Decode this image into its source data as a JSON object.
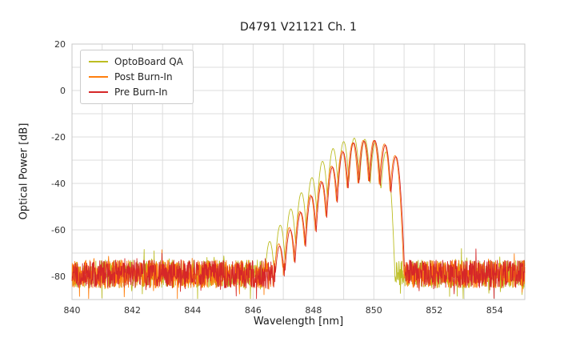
{
  "chart_data": {
    "type": "line",
    "title": "D4791 V21121 Ch. 1",
    "xlabel": "Wavelength [nm]",
    "ylabel": "Optical Power [dB]",
    "xlim": [
      840,
      855
    ],
    "ylim": [
      -90,
      20
    ],
    "xticks": [
      840,
      842,
      844,
      846,
      848,
      850,
      852,
      854
    ],
    "yticks": [
      20,
      0,
      -20,
      -40,
      -60,
      -80
    ],
    "x_grid_step_nm": 1,
    "y_grid_step_db": 10,
    "grid": true,
    "legend_position": "upper-left",
    "noise_floor_band_db": [
      -88,
      -70
    ],
    "signal_region_nm": [
      846.5,
      850.8
    ],
    "peak_power_db": -20.5,
    "series": [
      {
        "name": "OptoBoard QA",
        "color": "#bcbd22",
        "seed": 11,
        "mode_curvature_db_per_nm2": 600,
        "modes": [
          [
            846.55,
            -65
          ],
          [
            846.9,
            -58
          ],
          [
            847.25,
            -51
          ],
          [
            847.6,
            -44
          ],
          [
            847.95,
            -37.5
          ],
          [
            848.3,
            -30.5
          ],
          [
            848.65,
            -25
          ],
          [
            849.0,
            -22
          ],
          [
            849.35,
            -20.5
          ],
          [
            849.7,
            -21
          ],
          [
            850.05,
            -22.5
          ],
          [
            850.4,
            -26.5
          ]
        ]
      },
      {
        "name": "Post Burn-In",
        "color": "#ff7f0e",
        "seed": 22,
        "mode_curvature_db_per_nm2": 600,
        "modes": [
          [
            846.85,
            -66
          ],
          [
            847.2,
            -59
          ],
          [
            847.55,
            -52
          ],
          [
            847.9,
            -45
          ],
          [
            848.25,
            -39
          ],
          [
            848.6,
            -32.5
          ],
          [
            848.95,
            -26
          ],
          [
            849.3,
            -22.5
          ],
          [
            849.65,
            -21.5
          ],
          [
            850.0,
            -21.5
          ],
          [
            850.35,
            -23
          ],
          [
            850.7,
            -28
          ]
        ]
      },
      {
        "name": "Pre Burn-In",
        "color": "#d62728",
        "seed": 33,
        "mode_curvature_db_per_nm2": 600,
        "modes": [
          [
            846.88,
            -67
          ],
          [
            847.23,
            -60
          ],
          [
            847.58,
            -52.5
          ],
          [
            847.93,
            -45.5
          ],
          [
            848.28,
            -39.5
          ],
          [
            848.63,
            -33
          ],
          [
            848.98,
            -26.5
          ],
          [
            849.33,
            -22.5
          ],
          [
            849.68,
            -21.8
          ],
          [
            850.03,
            -21.5
          ],
          [
            850.38,
            -23.5
          ],
          [
            850.73,
            -28.5
          ]
        ]
      }
    ]
  }
}
